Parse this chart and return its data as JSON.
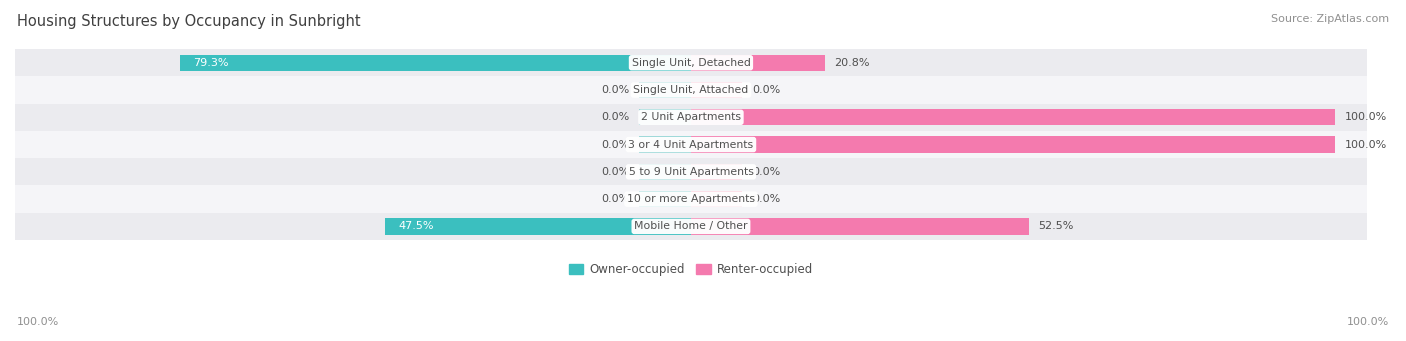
{
  "title": "Housing Structures by Occupancy in Sunbright",
  "source": "Source: ZipAtlas.com",
  "categories": [
    "Single Unit, Detached",
    "Single Unit, Attached",
    "2 Unit Apartments",
    "3 or 4 Unit Apartments",
    "5 to 9 Unit Apartments",
    "10 or more Apartments",
    "Mobile Home / Other"
  ],
  "owner_values": [
    79.3,
    0.0,
    0.0,
    0.0,
    0.0,
    0.0,
    47.5
  ],
  "renter_values": [
    20.8,
    0.0,
    100.0,
    100.0,
    0.0,
    0.0,
    52.5
  ],
  "owner_color": "#3BBFBF",
  "renter_color": "#F47AAE",
  "owner_small_color": "#90D4D4",
  "renter_small_color": "#F9B8CC",
  "row_bg_even": "#EBEBEF",
  "row_bg_odd": "#F5F5F8",
  "title_color": "#404040",
  "source_color": "#909090",
  "label_color": "#505050",
  "value_label_color": "#505050",
  "axis_label_color": "#909090",
  "legend_label_color": "#505050",
  "title_fontsize": 10.5,
  "source_fontsize": 8,
  "bar_label_fontsize": 8,
  "cat_label_fontsize": 7.8,
  "axis_fontsize": 8,
  "legend_fontsize": 8.5,
  "bar_height": 0.6,
  "xlim": 105,
  "stub_size": 8
}
